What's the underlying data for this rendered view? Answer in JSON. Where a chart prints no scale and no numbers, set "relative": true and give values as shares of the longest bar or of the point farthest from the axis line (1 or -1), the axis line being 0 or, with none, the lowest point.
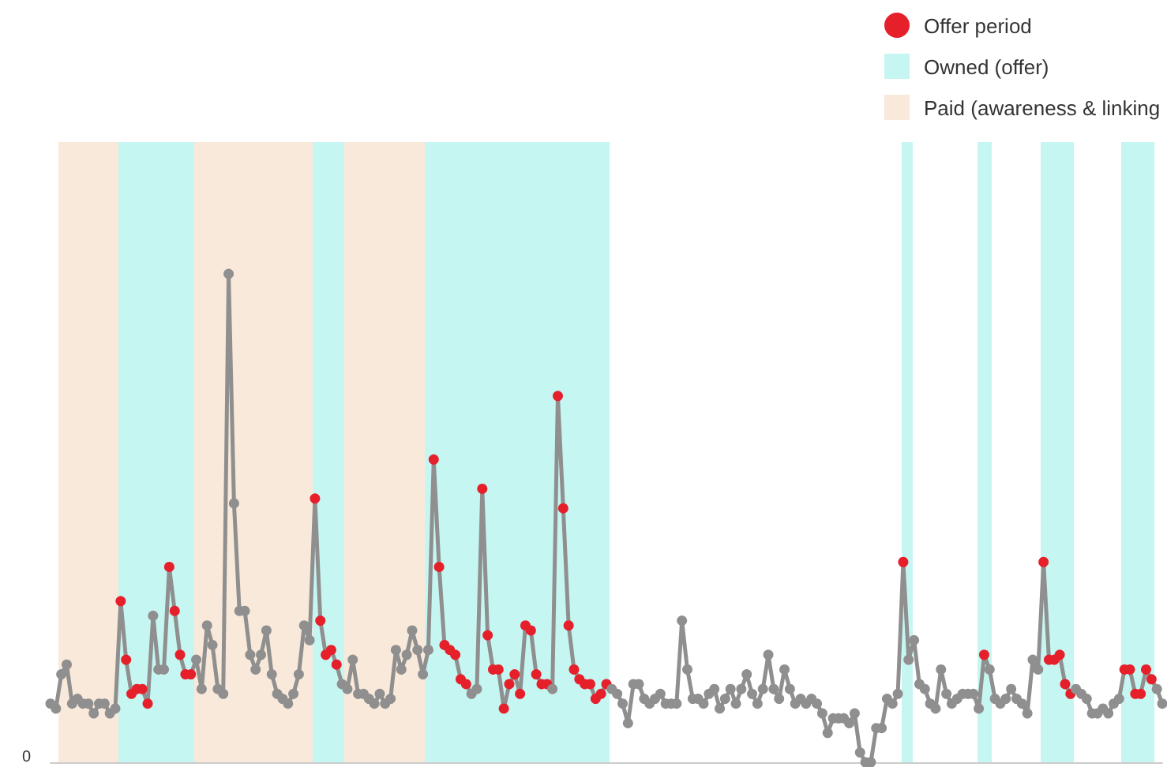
{
  "chart_data": {
    "type": "line",
    "relative": true,
    "marker": "circle",
    "line_style": "solid",
    "tick_labels": false,
    "categories": [
      null,
      null,
      null,
      null,
      null,
      null,
      null,
      null,
      null,
      null,
      null,
      null,
      null,
      null,
      null,
      null,
      null,
      null,
      null,
      null,
      null,
      null,
      null,
      null,
      null,
      null,
      null,
      null,
      null,
      null,
      null,
      null,
      null,
      null,
      null,
      null,
      null,
      null,
      null,
      null,
      null,
      null,
      null,
      null,
      null,
      null,
      null,
      null,
      null,
      null,
      null,
      null,
      null,
      null,
      null,
      null,
      null,
      null,
      null,
      null,
      null,
      null,
      null,
      null,
      null,
      null,
      null,
      null,
      null,
      null,
      null,
      null,
      null,
      null,
      null,
      null,
      null,
      null,
      null,
      null,
      null,
      null,
      null,
      null,
      null,
      null,
      null,
      null,
      null,
      null,
      null,
      null,
      null,
      null,
      null,
      null,
      null,
      null,
      null,
      null,
      null,
      null,
      null,
      null,
      null,
      null,
      null,
      null,
      null,
      null,
      null,
      null,
      null,
      null,
      null,
      null,
      null,
      null,
      null,
      null,
      null,
      null,
      null,
      null,
      null,
      null,
      null,
      null,
      null,
      null,
      null,
      null,
      null,
      null,
      null,
      null,
      null,
      null,
      null,
      null,
      null,
      null,
      null,
      null,
      null,
      null,
      null,
      null,
      null,
      null,
      null,
      null,
      null,
      null,
      null,
      null,
      null,
      null,
      null,
      null,
      null,
      null,
      null,
      null,
      null,
      null,
      null,
      null,
      null,
      null,
      null,
      null,
      null,
      null,
      null,
      null,
      null,
      null,
      null,
      null,
      null,
      null,
      null,
      null,
      null,
      null,
      null,
      null,
      null,
      null,
      null,
      null,
      null,
      null,
      null,
      null,
      null,
      null,
      null,
      null,
      null,
      null,
      null,
      null,
      null,
      null,
      null
    ],
    "annotations": [
      "0",
      "Offer period",
      "Owned (offer)",
      "Paid (awareness & linking"
    ],
    "series": [
      {
        "color": "#8f8f8f",
        "values": [
          0.12,
          0.11,
          0.18,
          0.2,
          0.12,
          0.13,
          0.12,
          0.12,
          0.1,
          0.12,
          0.12,
          0.1,
          0.11,
          0.33,
          0.21,
          0.14,
          0.15,
          0.15,
          0.12,
          0.3,
          0.19,
          0.19,
          0.4,
          0.31,
          0.22,
          0.18,
          0.18,
          0.21,
          0.15,
          0.28,
          0.24,
          0.15,
          0.14,
          1.0,
          0.53,
          0.31,
          0.31,
          0.22,
          0.19,
          0.22,
          0.27,
          0.18,
          0.14,
          0.13,
          0.12,
          0.14,
          0.18,
          0.28,
          0.25,
          0.54,
          0.29,
          0.22,
          0.23,
          0.2,
          0.16,
          0.15,
          0.21,
          0.14,
          0.14,
          0.13,
          0.12,
          0.14,
          0.12,
          0.13,
          0.23,
          0.19,
          0.22,
          0.27,
          0.23,
          0.18,
          0.23,
          0.62,
          0.4,
          0.24,
          0.23,
          0.22,
          0.17,
          0.16,
          0.14,
          0.15,
          0.56,
          0.26,
          0.19,
          0.19,
          0.11,
          0.16,
          0.18,
          0.14,
          0.28,
          0.27,
          0.18,
          0.16,
          0.16,
          0.15,
          0.75,
          0.52,
          0.28,
          0.19,
          0.17,
          0.16,
          0.16,
          0.13,
          0.14,
          0.16,
          0.15,
          0.14,
          0.12,
          0.08,
          0.16,
          0.16,
          0.13,
          0.12,
          0.13,
          0.14,
          0.12,
          0.12,
          0.12,
          0.29,
          0.19,
          0.13,
          0.13,
          0.12,
          0.14,
          0.15,
          0.11,
          0.13,
          0.15,
          0.12,
          0.15,
          0.18,
          0.14,
          0.12,
          0.15,
          0.22,
          0.15,
          0.13,
          0.19,
          0.15,
          0.12,
          0.13,
          0.12,
          0.13,
          0.12,
          0.1,
          0.06,
          0.09,
          0.09,
          0.09,
          0.08,
          0.1,
          0.02,
          0,
          0,
          0.07,
          0.07,
          0.13,
          0.12,
          0.14,
          0.41,
          0.21,
          0.25,
          0.16,
          0.15,
          0.12,
          0.11,
          0.19,
          0.14,
          0.12,
          0.13,
          0.14,
          0.14,
          0.14,
          0.11,
          0.22,
          0.19,
          0.13,
          0.12,
          0.13,
          0.15,
          0.13,
          0.12,
          0.1,
          0.21,
          0.19,
          0.41,
          0.21,
          0.21,
          0.22,
          0.16,
          0.14,
          0.15,
          0.14,
          0.13,
          0.1,
          0.1,
          0.11,
          0.1,
          0.12,
          0.13,
          0.19,
          0.19,
          0.14,
          0.14,
          0.19,
          0.17,
          0.15,
          0.12
        ],
        "colors": [
          "#8f8f8f",
          "#8f8f8f",
          "#8f8f8f",
          "#8f8f8f",
          "#8f8f8f",
          "#8f8f8f",
          "#8f8f8f",
          "#8f8f8f",
          "#8f8f8f",
          "#8f8f8f",
          "#8f8f8f",
          "#8f8f8f",
          "#8f8f8f",
          "#e5202b",
          "#e5202b",
          "#e5202b",
          "#e5202b",
          "#e5202b",
          "#e5202b",
          "#8f8f8f",
          "#8f8f8f",
          "#8f8f8f",
          "#e5202b",
          "#e5202b",
          "#e5202b",
          "#e5202b",
          "#e5202b",
          "#8f8f8f",
          "#8f8f8f",
          "#8f8f8f",
          "#8f8f8f",
          "#8f8f8f",
          "#8f8f8f",
          "#8f8f8f",
          "#8f8f8f",
          "#8f8f8f",
          "#8f8f8f",
          "#8f8f8f",
          "#8f8f8f",
          "#8f8f8f",
          "#8f8f8f",
          "#8f8f8f",
          "#8f8f8f",
          "#8f8f8f",
          "#8f8f8f",
          "#8f8f8f",
          "#8f8f8f",
          "#8f8f8f",
          "#8f8f8f",
          "#e5202b",
          "#e5202b",
          "#e5202b",
          "#e5202b",
          "#e5202b",
          "#8f8f8f",
          "#8f8f8f",
          "#8f8f8f",
          "#8f8f8f",
          "#8f8f8f",
          "#8f8f8f",
          "#8f8f8f",
          "#8f8f8f",
          "#8f8f8f",
          "#8f8f8f",
          "#8f8f8f",
          "#8f8f8f",
          "#8f8f8f",
          "#8f8f8f",
          "#8f8f8f",
          "#8f8f8f",
          "#8f8f8f",
          "#e5202b",
          "#e5202b",
          "#e5202b",
          "#e5202b",
          "#e5202b",
          "#e5202b",
          "#e5202b",
          "#8f8f8f",
          "#8f8f8f",
          "#e5202b",
          "#e5202b",
          "#e5202b",
          "#e5202b",
          "#e5202b",
          "#e5202b",
          "#e5202b",
          "#e5202b",
          "#e5202b",
          "#e5202b",
          "#e5202b",
          "#e5202b",
          "#e5202b",
          "#8f8f8f",
          "#e5202b",
          "#e5202b",
          "#e5202b",
          "#e5202b",
          "#e5202b",
          "#e5202b",
          "#e5202b",
          "#e5202b",
          "#e5202b",
          "#e5202b",
          "#8f8f8f",
          "#8f8f8f",
          "#8f8f8f",
          "#8f8f8f",
          "#8f8f8f",
          "#8f8f8f",
          "#8f8f8f",
          "#8f8f8f",
          "#8f8f8f",
          "#8f8f8f",
          "#8f8f8f",
          "#8f8f8f",
          "#8f8f8f",
          "#8f8f8f",
          "#8f8f8f",
          "#8f8f8f",
          "#8f8f8f",
          "#8f8f8f",
          "#8f8f8f",
          "#8f8f8f",
          "#8f8f8f",
          "#8f8f8f",
          "#8f8f8f",
          "#8f8f8f",
          "#8f8f8f",
          "#8f8f8f",
          "#8f8f8f",
          "#8f8f8f",
          "#8f8f8f",
          "#8f8f8f",
          "#8f8f8f",
          "#8f8f8f",
          "#8f8f8f",
          "#8f8f8f",
          "#8f8f8f",
          "#8f8f8f",
          "#8f8f8f",
          "#8f8f8f",
          "#8f8f8f",
          "#8f8f8f",
          "#8f8f8f",
          "#8f8f8f",
          "#8f8f8f",
          "#8f8f8f",
          "#8f8f8f",
          "#8f8f8f",
          "#8f8f8f",
          "#8f8f8f",
          "#8f8f8f",
          "#8f8f8f",
          "#8f8f8f",
          "#8f8f8f",
          "#8f8f8f",
          "#8f8f8f",
          "#e5202b",
          "#8f8f8f",
          "#8f8f8f",
          "#8f8f8f",
          "#8f8f8f",
          "#8f8f8f",
          "#8f8f8f",
          "#8f8f8f",
          "#8f8f8f",
          "#8f8f8f",
          "#8f8f8f",
          "#8f8f8f",
          "#8f8f8f",
          "#8f8f8f",
          "#8f8f8f",
          "#e5202b",
          "#8f8f8f",
          "#8f8f8f",
          "#8f8f8f",
          "#8f8f8f",
          "#8f8f8f",
          "#8f8f8f",
          "#8f8f8f",
          "#8f8f8f",
          "#8f8f8f",
          "#8f8f8f",
          "#e5202b",
          "#e5202b",
          "#e5202b",
          "#e5202b",
          "#e5202b",
          "#e5202b",
          "#8f8f8f",
          "#8f8f8f",
          "#8f8f8f",
          "#8f8f8f",
          "#8f8f8f",
          "#8f8f8f",
          "#8f8f8f",
          "#8f8f8f",
          "#8f8f8f",
          "#e5202b",
          "#e5202b",
          "#e5202b",
          "#e5202b",
          "#e5202b",
          "#e5202b",
          "#8f8f8f",
          "#8f8f8f"
        ]
      }
    ]
  }
}
